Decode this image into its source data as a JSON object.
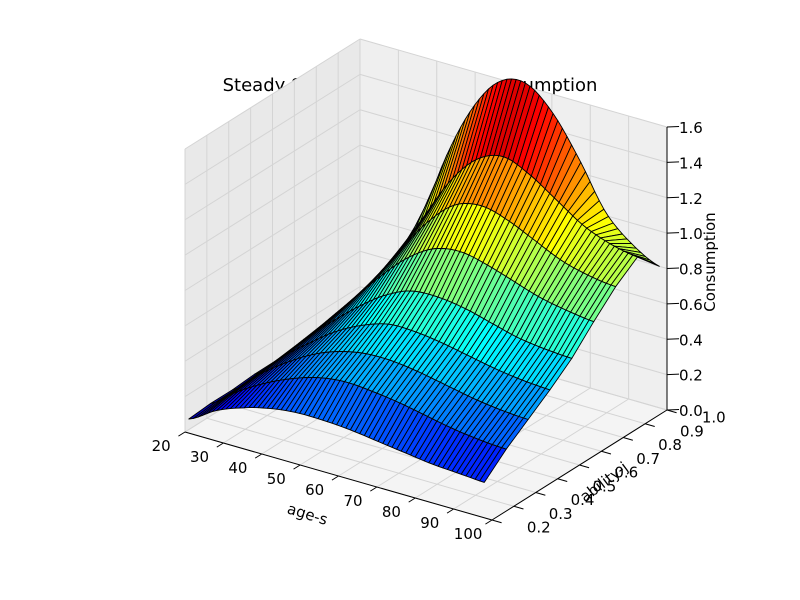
{
  "chart_data": {
    "type": "surface3d",
    "title": "Steady State Distribution of Consumption",
    "xlabel": "age-s",
    "ylabel": "ability-j",
    "zlabel": "Consumption",
    "xlim": [
      20,
      100
    ],
    "ylim": [
      0.2,
      1.0
    ],
    "zlim": [
      0.0,
      1.6
    ],
    "x_ticks": [
      "20",
      "30",
      "40",
      "50",
      "60",
      "70",
      "80",
      "90",
      "100"
    ],
    "y_ticks": [
      "0.2",
      "0.3",
      "0.4",
      "0.5",
      "0.6",
      "0.7",
      "0.8",
      "0.9",
      "1.0"
    ],
    "z_ticks": [
      "0.0",
      "0.2",
      "0.4",
      "0.6",
      "0.8",
      "1.0",
      "1.2",
      "1.4",
      "1.6"
    ],
    "colormap": "jet",
    "grid": true,
    "ages": [
      21,
      28,
      35,
      42,
      49,
      56,
      63,
      70,
      77,
      84,
      91,
      98
    ],
    "abilities": [
      0.2,
      0.3,
      0.4,
      0.5,
      0.6,
      0.7,
      0.8,
      0.9,
      1.0
    ],
    "series": [
      {
        "ability": 0.2,
        "values": [
          0.08,
          0.17,
          0.23,
          0.27,
          0.29,
          0.29,
          0.28,
          0.26,
          0.24,
          0.22,
          0.21,
          0.2
        ]
      },
      {
        "ability": 0.3,
        "values": [
          0.09,
          0.2,
          0.29,
          0.36,
          0.41,
          0.43,
          0.42,
          0.4,
          0.37,
          0.34,
          0.32,
          0.31
        ]
      },
      {
        "ability": 0.4,
        "values": [
          0.09,
          0.22,
          0.33,
          0.42,
          0.48,
          0.51,
          0.51,
          0.49,
          0.46,
          0.43,
          0.41,
          0.4
        ]
      },
      {
        "ability": 0.5,
        "values": [
          0.1,
          0.24,
          0.36,
          0.47,
          0.55,
          0.6,
          0.6,
          0.58,
          0.55,
          0.52,
          0.5,
          0.49
        ]
      },
      {
        "ability": 0.6,
        "values": [
          0.1,
          0.26,
          0.4,
          0.53,
          0.64,
          0.71,
          0.72,
          0.7,
          0.66,
          0.62,
          0.6,
          0.59
        ]
      },
      {
        "ability": 0.7,
        "values": [
          0.1,
          0.28,
          0.45,
          0.62,
          0.77,
          0.87,
          0.9,
          0.87,
          0.82,
          0.77,
          0.74,
          0.72
        ]
      },
      {
        "ability": 0.8,
        "values": [
          0.11,
          0.3,
          0.49,
          0.7,
          0.9,
          1.04,
          1.08,
          1.04,
          0.97,
          0.9,
          0.86,
          0.84
        ]
      },
      {
        "ability": 0.9,
        "values": [
          0.12,
          0.33,
          0.55,
          0.8,
          1.05,
          1.22,
          1.28,
          1.22,
          1.12,
          1.02,
          0.96,
          0.93
        ]
      },
      {
        "ability": 1.0,
        "values": [
          0.12,
          0.34,
          0.6,
          1.05,
          1.38,
          1.58,
          1.62,
          1.5,
          1.28,
          1.02,
          0.88,
          0.8
        ]
      }
    ]
  }
}
